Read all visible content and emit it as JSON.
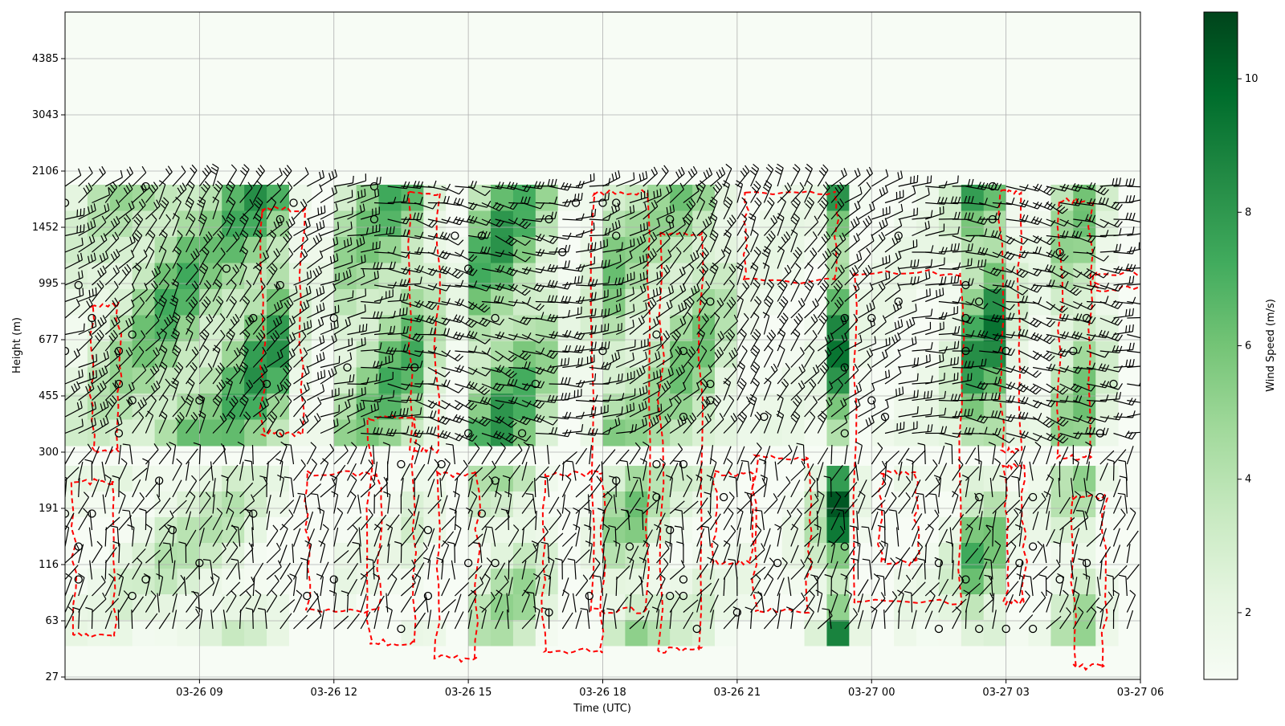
{
  "chart_data": {
    "type": "heatmap",
    "title": "",
    "xlabel": "Time (UTC)",
    "ylabel": "Height (m)",
    "colorbar_label": "Wind Speed (m/s)",
    "colormap": "Greens",
    "colors": {
      "low": "#f7fcf5",
      "high": "#00441b",
      "contour": "#ff0000",
      "barb": "#000000",
      "grid": "#b0b0b0"
    },
    "grid": true,
    "x_hours_range": [
      6.0,
      30.0
    ],
    "x_ticks": [
      {
        "hour": 9,
        "label": "03-26 09"
      },
      {
        "hour": 12,
        "label": "03-26 12"
      },
      {
        "hour": 15,
        "label": "03-26 15"
      },
      {
        "hour": 18,
        "label": "03-26 18"
      },
      {
        "hour": 21,
        "label": "03-26 21"
      },
      {
        "hour": 24,
        "label": "03-27 00"
      },
      {
        "hour": 27,
        "label": "03-27 03"
      },
      {
        "hour": 30,
        "label": "03-27 06"
      }
    ],
    "y_ticks": [
      "27",
      "63",
      "116",
      "191",
      "300",
      "455",
      "677",
      "995",
      "1452",
      "2106",
      "3043",
      "4385"
    ],
    "colorbar": {
      "min": 1.0,
      "max": 11.0,
      "ticks": [
        2,
        4,
        6,
        8,
        10
      ]
    },
    "speed_profile": {
      "hours": [
        6.0,
        6.5,
        7.0,
        7.5,
        8.0,
        8.5,
        9.0,
        9.5,
        10.0,
        10.5,
        11.0,
        11.5,
        12.0,
        12.5,
        13.0,
        13.5,
        14.0,
        14.5,
        15.0,
        15.5,
        16.0,
        16.5,
        17.0,
        17.5,
        18.0,
        18.5,
        19.0,
        19.5,
        20.0,
        20.5,
        21.0,
        21.5,
        22.0,
        22.5,
        23.0,
        23.5,
        24.0,
        24.5,
        25.0,
        25.5,
        26.0,
        26.5,
        27.0,
        27.5,
        28.0,
        28.5,
        29.0
      ],
      "upper_speed": [
        3,
        4,
        5,
        6,
        7,
        7,
        6,
        7,
        8,
        8,
        3,
        2,
        5,
        6,
        7,
        7,
        4,
        2,
        7,
        8,
        7,
        5,
        2,
        3,
        6,
        5,
        5,
        6,
        6,
        4,
        2,
        2,
        2,
        2,
        9,
        2,
        2,
        2,
        2,
        3,
        8,
        9,
        3,
        2,
        5,
        6,
        3
      ],
      "lower_speed": [
        2,
        2,
        3,
        3,
        4,
        4,
        4,
        4,
        3,
        2,
        1,
        1,
        2,
        2,
        2,
        3,
        2,
        1,
        4,
        5,
        5,
        3,
        1,
        2,
        5,
        6,
        4,
        3,
        3,
        2,
        2,
        1,
        2,
        4,
        10,
        2,
        1,
        2,
        2,
        3,
        7,
        6,
        2,
        2,
        4,
        5,
        2
      ]
    }
  }
}
